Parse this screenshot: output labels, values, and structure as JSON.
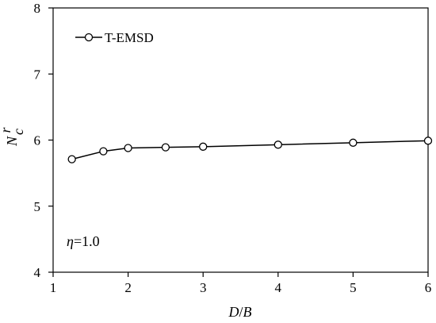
{
  "chart_data": {
    "type": "line",
    "xlabel": "D/B",
    "ylabel": "N_c^r",
    "xlim": [
      1,
      6
    ],
    "ylim": [
      4,
      8
    ],
    "x_ticks": [
      "1",
      "2",
      "3",
      "4",
      "5",
      "6"
    ],
    "y_ticks": [
      "4",
      "5",
      "6",
      "7",
      "8"
    ],
    "grid": false,
    "legend_position": "top-left",
    "series": [
      {
        "name": "T-EMSD",
        "marker": "open-circle",
        "color": "#000000",
        "x": [
          1.25,
          1.67,
          2.0,
          2.5,
          3.0,
          4.0,
          5.0,
          6.0
        ],
        "y": [
          5.71,
          5.83,
          5.88,
          5.89,
          5.9,
          5.93,
          5.96,
          5.99
        ]
      }
    ],
    "annotations": [
      {
        "text": "=1.0",
        "symbol": "η",
        "x": 1.2,
        "y": 4.55
      }
    ]
  },
  "axis_title": {
    "x_main": "D",
    "x_sep": "/",
    "x_den": "B",
    "y_main": "N",
    "y_sup": "r",
    "y_sub": "c"
  }
}
